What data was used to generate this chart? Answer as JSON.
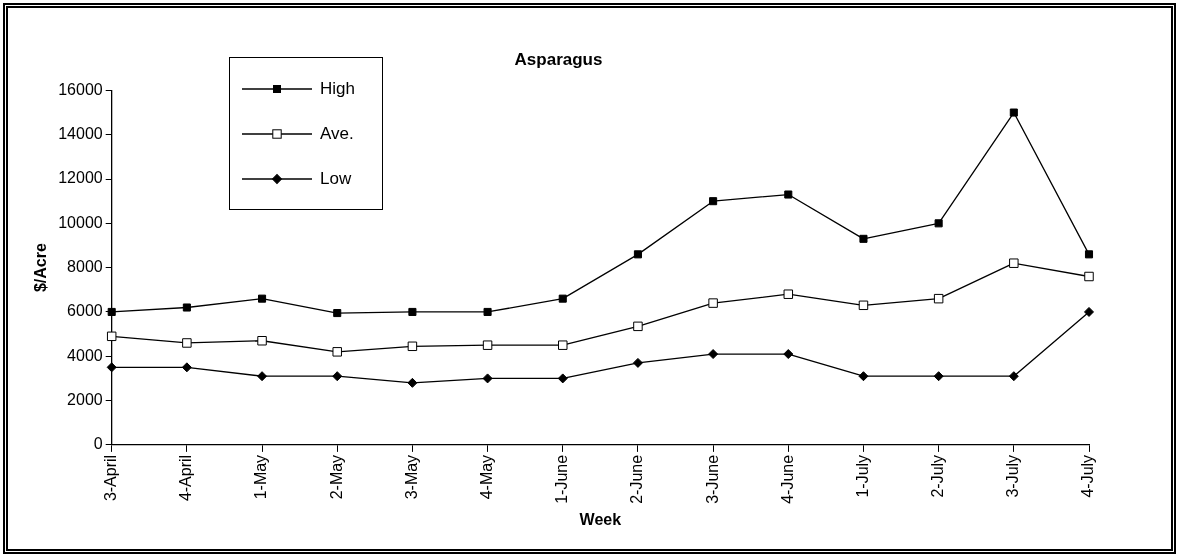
{
  "chart_data": {
    "type": "line",
    "title": "Asparagus",
    "xlabel": "Week",
    "ylabel": "$/Acre",
    "categories": [
      "3-April",
      "4-April",
      "1-May",
      "2-May",
      "3-May",
      "4-May",
      "1-June",
      "2-June",
      "3-June",
      "4-June",
      "1-July",
      "2-July",
      "3-July",
      "4-July"
    ],
    "series": [
      {
        "name": "High",
        "color": "#000000",
        "marker": "square",
        "values": [
          6000,
          6200,
          6600,
          5950,
          6000,
          6000,
          6600,
          8600,
          11000,
          11300,
          9300,
          10000,
          15000,
          8600
        ]
      },
      {
        "name": "Ave.",
        "color": "#000000",
        "marker": "square",
        "values": [
          4900,
          4600,
          4700,
          4200,
          4450,
          4500,
          4500,
          5350,
          6400,
          6800,
          6300,
          6600,
          8200,
          7600
        ]
      },
      {
        "name": "Low",
        "color": "#000000",
        "marker": "diamond",
        "values": [
          3500,
          3500,
          3100,
          3100,
          2800,
          3000,
          3000,
          3700,
          4100,
          4100,
          3100,
          3100,
          3100,
          6000
        ]
      }
    ],
    "ylim": [
      0,
      16000
    ],
    "yticks": [
      0,
      2000,
      4000,
      6000,
      8000,
      10000,
      12000,
      14000,
      16000
    ],
    "grid": false,
    "legend": "top left",
    "line_style": "solid"
  }
}
